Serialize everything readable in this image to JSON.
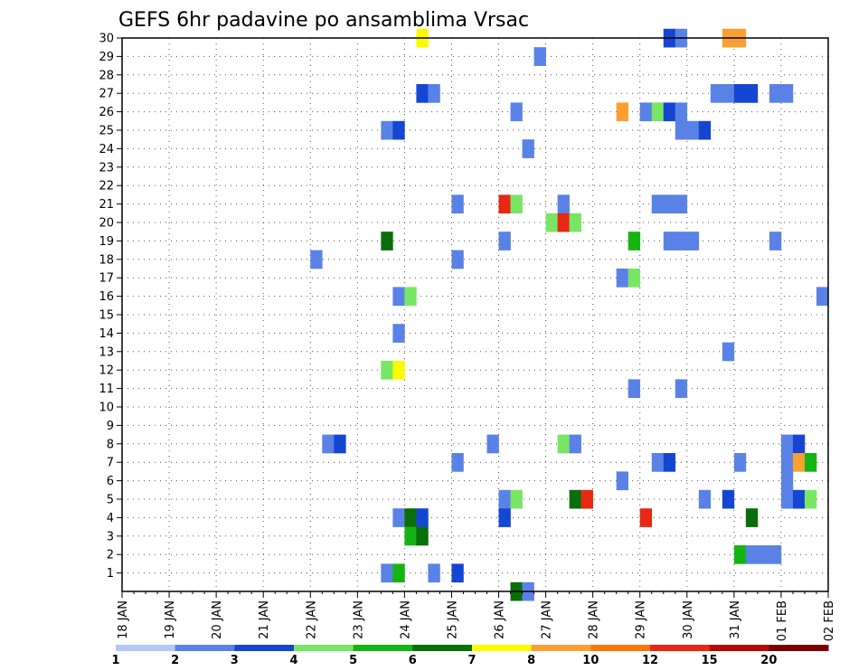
{
  "chart_data": {
    "type": "heatmap",
    "title": "GEFS 6hr padavine po ansamblima Vrsac",
    "xlabel": "",
    "ylabel": "",
    "x_ticks": [
      "18 JAN",
      "19 JAN",
      "20 JAN",
      "21 JAN",
      "22 JAN",
      "23 JAN",
      "24 JAN",
      "25 JAN",
      "26 JAN",
      "27 JAN",
      "28 JAN",
      "29 JAN",
      "30 JAN",
      "31 JAN",
      "01 FEB",
      "02 FEB"
    ],
    "y_ticks": [
      "1",
      "2",
      "3",
      "4",
      "5",
      "6",
      "7",
      "8",
      "9",
      "10",
      "11",
      "12",
      "13",
      "14",
      "15",
      "16",
      "17",
      "18",
      "19",
      "20",
      "21",
      "22",
      "23",
      "24",
      "25",
      "26",
      "27",
      "28",
      "29",
      "30"
    ],
    "members_range": [
      1,
      30
    ],
    "time_range_days": [
      0,
      15
    ],
    "step_hours": 6,
    "grid": true,
    "colorbar": {
      "labels": [
        "1",
        "2",
        "3",
        "4",
        "5",
        "6",
        "7",
        "8",
        "10",
        "12",
        "15",
        "20"
      ],
      "colors": [
        "#b4c8f5",
        "#5a82e6",
        "#1446d2",
        "#78e664",
        "#14b414",
        "#0a6e0a",
        "#fafa00",
        "#faa032",
        "#fa780a",
        "#e62814",
        "#b40a0a",
        "#780000"
      ]
    },
    "cells": [
      {
        "m": 30,
        "s": 25,
        "v": 6
      },
      {
        "m": 30,
        "s": 46,
        "v": 2
      },
      {
        "m": 30,
        "s": 47,
        "v": 1
      },
      {
        "m": 30,
        "s": 51,
        "v": 7
      },
      {
        "m": 30,
        "s": 52,
        "v": 7
      },
      {
        "m": 29,
        "s": 35,
        "v": 1
      },
      {
        "m": 27,
        "s": 25,
        "v": 2
      },
      {
        "m": 27,
        "s": 26,
        "v": 1
      },
      {
        "m": 27,
        "s": 50,
        "v": 1
      },
      {
        "m": 27,
        "s": 51,
        "v": 1
      },
      {
        "m": 27,
        "s": 52,
        "v": 2
      },
      {
        "m": 27,
        "s": 53,
        "v": 2
      },
      {
        "m": 27,
        "s": 55,
        "v": 1
      },
      {
        "m": 27,
        "s": 56,
        "v": 1
      },
      {
        "m": 26,
        "s": 33,
        "v": 1
      },
      {
        "m": 26,
        "s": 42,
        "v": 7
      },
      {
        "m": 26,
        "s": 44,
        "v": 1
      },
      {
        "m": 26,
        "s": 45,
        "v": 3
      },
      {
        "m": 26,
        "s": 46,
        "v": 2
      },
      {
        "m": 26,
        "s": 47,
        "v": 1
      },
      {
        "m": 25,
        "s": 22,
        "v": 1
      },
      {
        "m": 25,
        "s": 23,
        "v": 2
      },
      {
        "m": 25,
        "s": 47,
        "v": 1
      },
      {
        "m": 25,
        "s": 48,
        "v": 1
      },
      {
        "m": 25,
        "s": 49,
        "v": 2
      },
      {
        "m": 24,
        "s": 34,
        "v": 1
      },
      {
        "m": 21,
        "s": 28,
        "v": 1
      },
      {
        "m": 21,
        "s": 32,
        "v": 9
      },
      {
        "m": 21,
        "s": 33,
        "v": 3
      },
      {
        "m": 21,
        "s": 37,
        "v": 1
      },
      {
        "m": 21,
        "s": 45,
        "v": 1
      },
      {
        "m": 21,
        "s": 46,
        "v": 1
      },
      {
        "m": 21,
        "s": 47,
        "v": 1
      },
      {
        "m": 20,
        "s": 36,
        "v": 3
      },
      {
        "m": 20,
        "s": 37,
        "v": 9
      },
      {
        "m": 20,
        "s": 38,
        "v": 3
      },
      {
        "m": 19,
        "s": 22,
        "v": 5
      },
      {
        "m": 19,
        "s": 32,
        "v": 1
      },
      {
        "m": 19,
        "s": 43,
        "v": 4
      },
      {
        "m": 19,
        "s": 46,
        "v": 1
      },
      {
        "m": 19,
        "s": 47,
        "v": 1
      },
      {
        "m": 19,
        "s": 48,
        "v": 1
      },
      {
        "m": 19,
        "s": 55,
        "v": 1
      },
      {
        "m": 18,
        "s": 16,
        "v": 1
      },
      {
        "m": 18,
        "s": 28,
        "v": 1
      },
      {
        "m": 17,
        "s": 42,
        "v": 1
      },
      {
        "m": 17,
        "s": 43,
        "v": 3
      },
      {
        "m": 16,
        "s": 23,
        "v": 1
      },
      {
        "m": 16,
        "s": 24,
        "v": 3
      },
      {
        "m": 16,
        "s": 59,
        "v": 1
      },
      {
        "m": 14,
        "s": 23,
        "v": 1
      },
      {
        "m": 13,
        "s": 51,
        "v": 1
      },
      {
        "m": 12,
        "s": 22,
        "v": 3
      },
      {
        "m": 12,
        "s": 23,
        "v": 6
      },
      {
        "m": 11,
        "s": 43,
        "v": 1
      },
      {
        "m": 11,
        "s": 47,
        "v": 1
      },
      {
        "m": 8,
        "s": 17,
        "v": 1
      },
      {
        "m": 8,
        "s": 18,
        "v": 2
      },
      {
        "m": 8,
        "s": 31,
        "v": 1
      },
      {
        "m": 8,
        "s": 37,
        "v": 3
      },
      {
        "m": 8,
        "s": 38,
        "v": 1
      },
      {
        "m": 8,
        "s": 56,
        "v": 1
      },
      {
        "m": 8,
        "s": 57,
        "v": 2
      },
      {
        "m": 7,
        "s": 28,
        "v": 1
      },
      {
        "m": 7,
        "s": 45,
        "v": 1
      },
      {
        "m": 7,
        "s": 46,
        "v": 2
      },
      {
        "m": 7,
        "s": 52,
        "v": 1
      },
      {
        "m": 7,
        "s": 56,
        "v": 1
      },
      {
        "m": 7,
        "s": 57,
        "v": 7
      },
      {
        "m": 7,
        "s": 58,
        "v": 4
      },
      {
        "m": 6,
        "s": 42,
        "v": 1
      },
      {
        "m": 6,
        "s": 56,
        "v": 1
      },
      {
        "m": 5,
        "s": 32,
        "v": 1
      },
      {
        "m": 5,
        "s": 33,
        "v": 3
      },
      {
        "m": 5,
        "s": 38,
        "v": 5
      },
      {
        "m": 5,
        "s": 39,
        "v": 9
      },
      {
        "m": 5,
        "s": 49,
        "v": 1
      },
      {
        "m": 5,
        "s": 51,
        "v": 2
      },
      {
        "m": 5,
        "s": 56,
        "v": 1
      },
      {
        "m": 5,
        "s": 57,
        "v": 2
      },
      {
        "m": 5,
        "s": 58,
        "v": 3
      },
      {
        "m": 4,
        "s": 23,
        "v": 1
      },
      {
        "m": 4,
        "s": 24,
        "v": 5
      },
      {
        "m": 4,
        "s": 25,
        "v": 2
      },
      {
        "m": 4,
        "s": 32,
        "v": 2
      },
      {
        "m": 4,
        "s": 44,
        "v": 9
      },
      {
        "m": 4,
        "s": 53,
        "v": 5
      },
      {
        "m": 3,
        "s": 24,
        "v": 4
      },
      {
        "m": 3,
        "s": 25,
        "v": 5
      },
      {
        "m": 2,
        "s": 52,
        "v": 4
      },
      {
        "m": 2,
        "s": 53,
        "v": 1
      },
      {
        "m": 2,
        "s": 54,
        "v": 1
      },
      {
        "m": 2,
        "s": 55,
        "v": 1
      },
      {
        "m": 1,
        "s": 22,
        "v": 1
      },
      {
        "m": 1,
        "s": 23,
        "v": 4
      },
      {
        "m": 1,
        "s": 26,
        "v": 1
      },
      {
        "m": 1,
        "s": 28,
        "v": 2
      },
      {
        "m": 0,
        "s": 33,
        "v": 5
      },
      {
        "m": 0,
        "s": 34,
        "v": 1
      }
    ]
  }
}
